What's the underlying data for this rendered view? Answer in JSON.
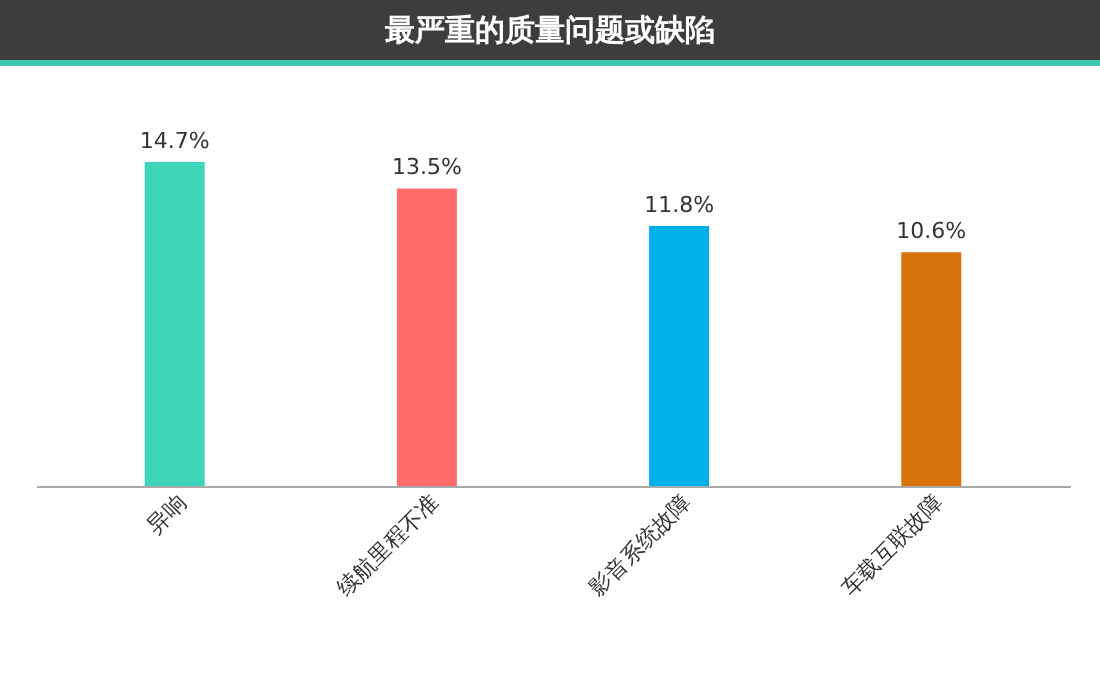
{
  "chart_data": {
    "type": "bar",
    "title": "最严重的质量问题或缺陷",
    "categories": [
      "异响",
      "续航里程不准",
      "影音系统故障",
      "车载互联故障"
    ],
    "values": [
      14.7,
      13.5,
      11.8,
      10.6
    ],
    "colors": [
      "#3dd6b8",
      "#ff6b6b",
      "#00b0e8",
      "#d9730b"
    ],
    "value_labels": [
      "14.7%",
      "13.5%",
      "11.8%",
      "10.6%"
    ]
  }
}
